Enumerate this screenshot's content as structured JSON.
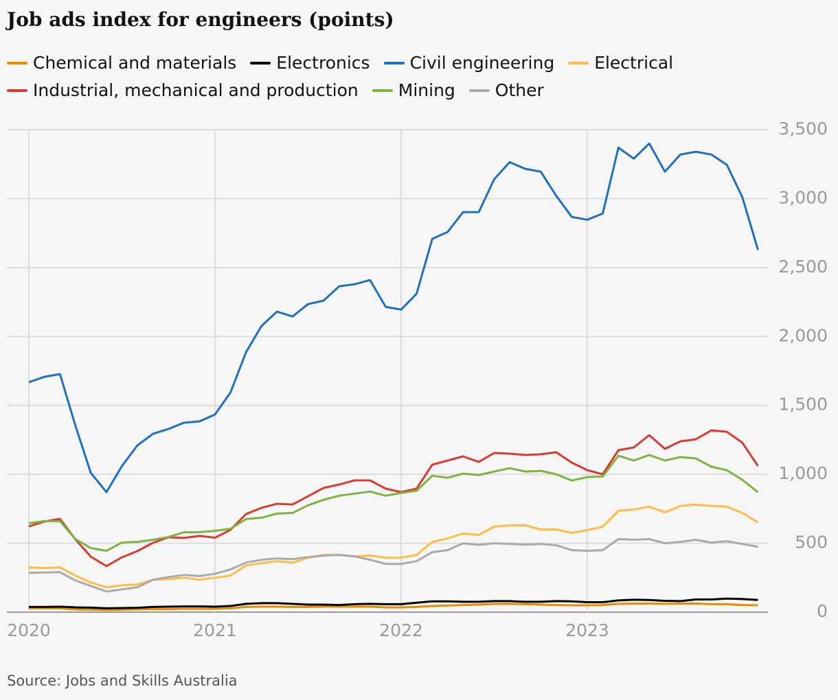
{
  "chart_data": {
    "type": "line",
    "title": "Job ads index for engineers (points)",
    "source": "Source: Jobs and Skills Australia",
    "x": [
      2020,
      2020.083,
      2020.167,
      2020.25,
      2020.333,
      2020.417,
      2020.5,
      2020.583,
      2020.667,
      2020.75,
      2020.833,
      2020.917,
      2021,
      2021.083,
      2021.167,
      2021.25,
      2021.333,
      2021.417,
      2021.5,
      2021.583,
      2021.667,
      2021.75,
      2021.833,
      2021.917,
      2022,
      2022.083,
      2022.167,
      2022.25,
      2022.333,
      2022.417,
      2022.5,
      2022.583,
      2022.667,
      2022.75,
      2022.833,
      2022.917,
      2023,
      2023.083,
      2023.167,
      2023.25,
      2023.333,
      2023.417,
      2023.5,
      2023.583,
      2023.667,
      2023.75,
      2023.833,
      2023.917
    ],
    "xlim": [
      2020,
      2023.917
    ],
    "xticks": [
      2020,
      2021,
      2022,
      2023
    ],
    "ylim": [
      0,
      3500
    ],
    "yticks": [
      0,
      500,
      {
        "value": 1000,
        "label": "1,000"
      },
      {
        "value": 1500,
        "label": "1,500"
      },
      {
        "value": 2000,
        "label": "2,000"
      },
      {
        "value": 2500,
        "label": "2,500"
      },
      {
        "value": 3000,
        "label": "3,000"
      },
      {
        "value": 3500,
        "label": "3,500"
      }
    ],
    "grid": true,
    "series": [
      {
        "name": "Chemical and materials",
        "color": "#e98a00",
        "values": [
          28,
          28,
          28,
          20,
          18,
          15,
          18,
          20,
          22,
          22,
          25,
          25,
          25,
          28,
          38,
          40,
          40,
          38,
          38,
          40,
          40,
          40,
          40,
          35,
          35,
          38,
          45,
          48,
          52,
          55,
          60,
          60,
          58,
          55,
          52,
          50,
          50,
          52,
          60,
          62,
          62,
          60,
          62,
          62,
          58,
          58,
          52,
          50
        ]
      },
      {
        "name": "Electronics",
        "color": "#000000",
        "values": [
          38,
          38,
          40,
          35,
          33,
          28,
          30,
          32,
          38,
          40,
          42,
          42,
          40,
          45,
          60,
          65,
          65,
          60,
          55,
          55,
          52,
          58,
          60,
          58,
          58,
          68,
          78,
          78,
          75,
          75,
          80,
          80,
          75,
          75,
          80,
          78,
          72,
          72,
          85,
          90,
          88,
          82,
          80,
          92,
          92,
          98,
          95,
          88
        ]
      },
      {
        "name": "Civil engineering",
        "color": "#1e6fc2",
        "values": [
          1668,
          1707,
          1727,
          1354,
          1010,
          871,
          1060,
          1210,
          1294,
          1329,
          1374,
          1384,
          1434,
          1593,
          1887,
          2076,
          2180,
          2145,
          2235,
          2260,
          2364,
          2379,
          2409,
          2215,
          2195,
          2310,
          2708,
          2758,
          2902,
          2902,
          3141,
          3265,
          3216,
          3196,
          3021,
          2867,
          2847,
          2892,
          3370,
          3290,
          3400,
          3196,
          3320,
          3340,
          3320,
          3245,
          3011,
          2628
        ]
      },
      {
        "name": "Electrical",
        "color": "#ffbb44",
        "values": [
          325,
          320,
          325,
          265,
          215,
          180,
          195,
          200,
          235,
          240,
          250,
          235,
          250,
          265,
          340,
          355,
          370,
          360,
          395,
          415,
          415,
          405,
          410,
          395,
          395,
          415,
          510,
          535,
          570,
          560,
          620,
          630,
          630,
          600,
          600,
          575,
          595,
          620,
          735,
          745,
          765,
          725,
          770,
          780,
          770,
          765,
          720,
          650
        ]
      },
      {
        "name": "Industrial, mechanical and production",
        "color": "#d93b30",
        "values": [
          622,
          657,
          677,
          528,
          403,
          334,
          398,
          443,
          503,
          543,
          538,
          553,
          540,
          597,
          712,
          757,
          786,
          781,
          841,
          901,
          926,
          956,
          956,
          896,
          871,
          896,
          1070,
          1100,
          1130,
          1090,
          1155,
          1150,
          1140,
          1145,
          1160,
          1085,
          1030,
          1000,
          1175,
          1195,
          1284,
          1185,
          1239,
          1254,
          1319,
          1309,
          1229,
          1060
        ]
      },
      {
        "name": "Mining",
        "color": "#7cb342",
        "values": [
          645,
          660,
          660,
          530,
          465,
          445,
          505,
          510,
          525,
          545,
          580,
          580,
          590,
          605,
          675,
          685,
          715,
          720,
          775,
          815,
          845,
          860,
          875,
          845,
          865,
          880,
          990,
          975,
          1005,
          995,
          1020,
          1045,
          1020,
          1025,
          1000,
          955,
          980,
          985,
          1135,
          1100,
          1140,
          1100,
          1125,
          1115,
          1055,
          1030,
          960,
          870
        ]
      },
      {
        "name": "Other",
        "color": "#aaaaaa",
        "values": [
          285,
          288,
          290,
          230,
          190,
          150,
          165,
          180,
          235,
          255,
          270,
          262,
          278,
          310,
          360,
          380,
          390,
          385,
          400,
          410,
          415,
          405,
          380,
          350,
          350,
          370,
          435,
          450,
          500,
          488,
          500,
          495,
          490,
          495,
          485,
          450,
          445,
          450,
          530,
          525,
          530,
          500,
          510,
          525,
          505,
          515,
          495,
          475
        ]
      }
    ]
  }
}
